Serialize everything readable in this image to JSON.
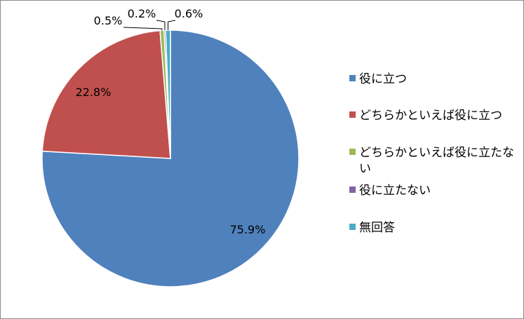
{
  "chart_data": {
    "type": "pie",
    "title": "",
    "categories": [
      "役に立つ",
      "どちらかといえば役に立つ",
      "どちらかといえば役に立たない",
      "役に立たない",
      "無回答"
    ],
    "values": [
      75.9,
      22.8,
      0.5,
      0.2,
      0.6
    ],
    "data_labels": [
      "75.9%",
      "22.8%",
      "0.5%",
      "0.2%",
      "0.6%"
    ],
    "colors": [
      "#4F81BD",
      "#C0504D",
      "#9BBB59",
      "#8064A2",
      "#4BACC6"
    ],
    "legend": {
      "position": "right",
      "entries": [
        {
          "lines": [
            "役に立つ"
          ]
        },
        {
          "lines": [
            "どちらかといえば役に立つ"
          ]
        },
        {
          "lines": [
            "どちらかといえば役に立たな",
            "い"
          ]
        },
        {
          "lines": [
            "役に立たない"
          ]
        },
        {
          "lines": [
            "無回答"
          ]
        }
      ]
    },
    "start_angle": "12 o'clock",
    "direction": "clockwise"
  }
}
